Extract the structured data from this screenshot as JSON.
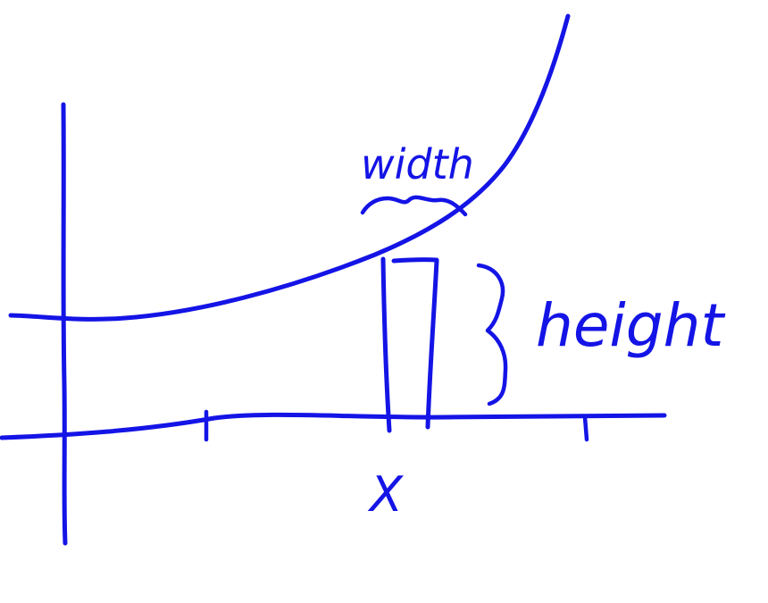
{
  "ink_color": "#1414e6",
  "labels": {
    "width": "width",
    "height": "height",
    "x": "X"
  },
  "marks": {
    "rectangle": "rectangle",
    "curve": "curve",
    "x_axis": "x-axis",
    "y_axis": "y-axis",
    "brace": "height-brace",
    "squiggle": "width-squiggle",
    "ticks": 3
  }
}
